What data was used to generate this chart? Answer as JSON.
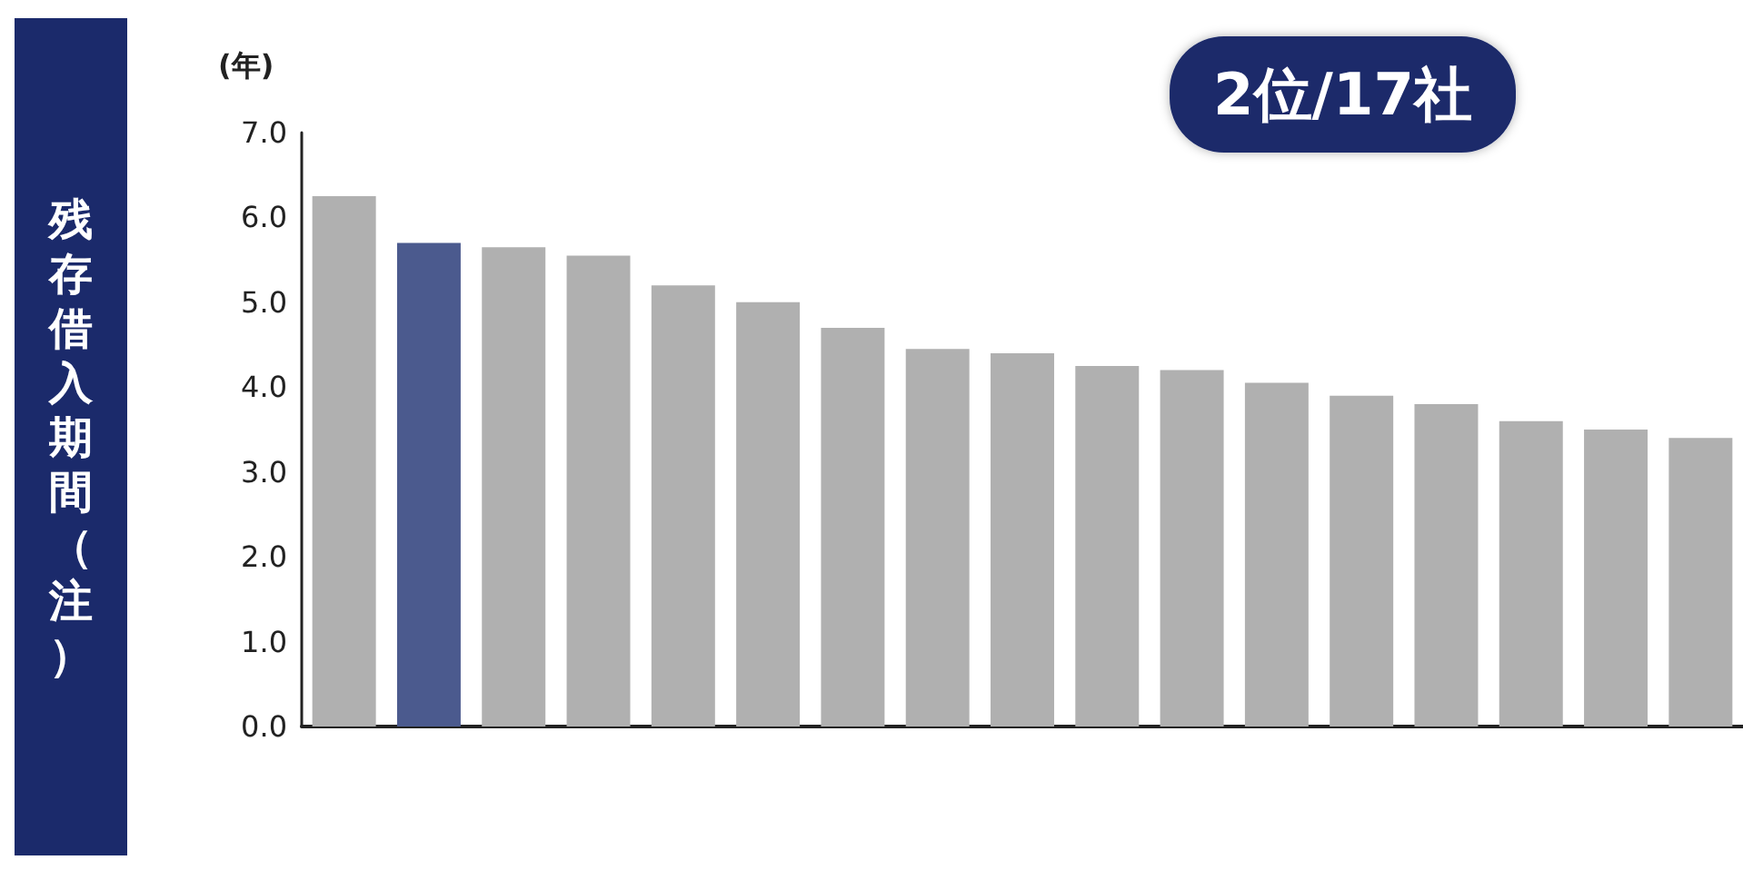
{
  "chart_data": {
    "type": "bar",
    "title": "2位/17社",
    "ylabel": "残存借入期間（注）",
    "annotations": [
      "(年)"
    ],
    "categories": [
      null,
      null,
      null,
      null,
      null,
      null,
      null,
      null,
      null,
      null,
      null,
      null,
      null,
      null,
      null,
      null,
      null
    ],
    "values": [
      6.25,
      5.7,
      5.65,
      5.55,
      5.2,
      5.0,
      4.7,
      4.45,
      4.4,
      4.25,
      4.2,
      4.05,
      3.9,
      3.8,
      3.6,
      3.5,
      3.4
    ],
    "colors": [
      "#b0b0b0",
      "#4b5a8e",
      "#b0b0b0",
      "#b0b0b0",
      "#b0b0b0",
      "#b0b0b0",
      "#b0b0b0",
      "#b0b0b0",
      "#b0b0b0",
      "#b0b0b0",
      "#b0b0b0",
      "#b0b0b0",
      "#b0b0b0",
      "#b0b0b0",
      "#b0b0b0",
      "#b0b0b0",
      "#b0b0b0"
    ],
    "ylim": [
      0,
      7
    ],
    "yticks": [
      {
        "value": 0,
        "label": "0.0"
      },
      {
        "value": 1,
        "label": "1.0"
      },
      {
        "value": 2,
        "label": "2.0"
      },
      {
        "value": 3,
        "label": "3.0"
      },
      {
        "value": 4,
        "label": "4.0"
      },
      {
        "value": 5,
        "label": "5.0"
      },
      {
        "value": 6,
        "label": "6.0"
      },
      {
        "value": 7,
        "label": "7.0"
      }
    ],
    "grid": false
  }
}
